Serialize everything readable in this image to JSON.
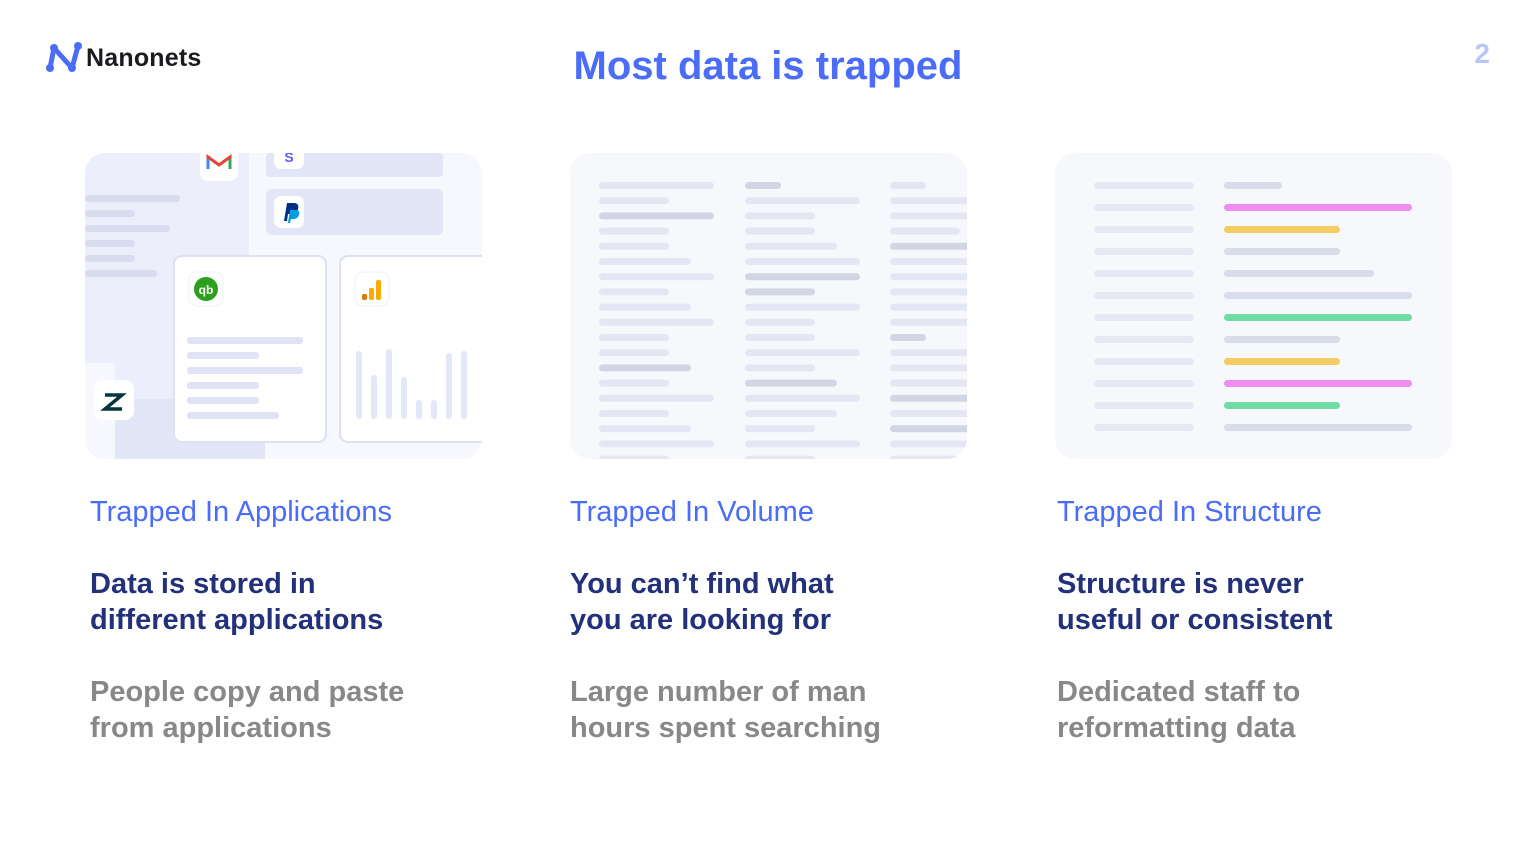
{
  "brand": {
    "name": "Nanonets",
    "logo_icon": "nanonets-logo-icon",
    "accent": "#4a6cf7"
  },
  "slide": {
    "title": "Most data is trapped",
    "page_number": "2"
  },
  "illustrations": {
    "applications": {
      "icons": [
        "gmail-icon",
        "stripe-icon",
        "paypal-icon",
        "quickbooks-icon",
        "google-analytics-icon",
        "zendesk-icon"
      ],
      "stripe_letter": "S"
    },
    "volume": {
      "icon": "document-lines-illustration"
    },
    "structure": {
      "icon": "structured-lines-illustration",
      "highlight_colors": [
        "#ef8ef0",
        "#f3cd62",
        "#6fdca6"
      ]
    }
  },
  "columns": [
    {
      "heading": "Trapped In Applications",
      "subheading_line1": "Data is stored in",
      "subheading_line2": "different applications",
      "body_line1": "People copy and paste",
      "body_line2": "from applications"
    },
    {
      "heading": "Trapped In Volume",
      "subheading_line1": "You can’t find what",
      "subheading_line2": "you are looking for",
      "body_line1": "Large number of man",
      "body_line2": "hours spent searching"
    },
    {
      "heading": "Trapped In Structure",
      "subheading_line1": "Structure is never",
      "subheading_line2": "useful or consistent",
      "body_line1": "Dedicated staff to",
      "body_line2": "reformatting data"
    }
  ]
}
